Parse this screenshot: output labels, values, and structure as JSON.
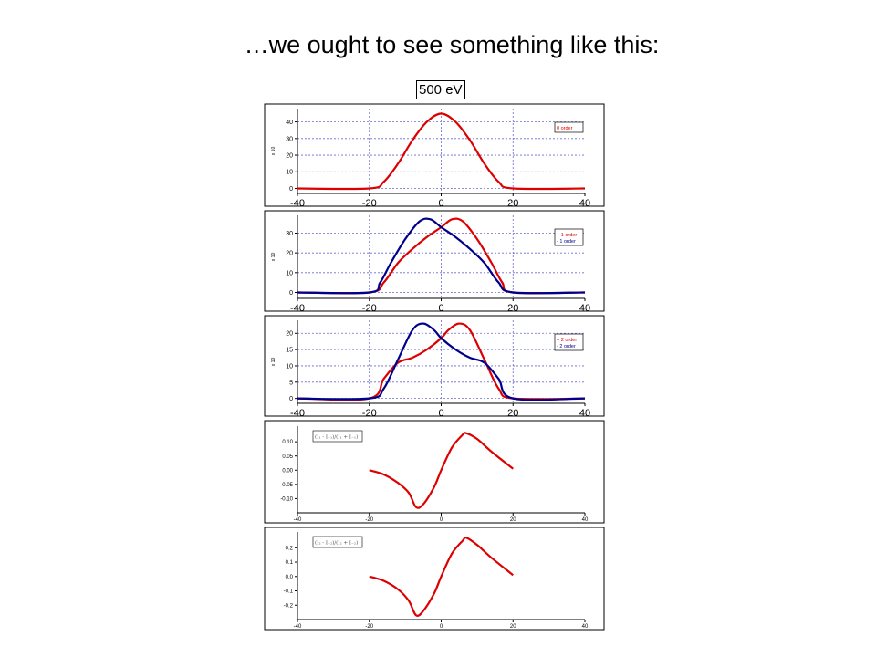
{
  "slide": {
    "title": "…we ought to see something like this:",
    "energy_label": "500 eV"
  },
  "colors": {
    "red": "#dd0000",
    "blue": "#00008b",
    "grid": "#6a6acd"
  },
  "chart_data": [
    {
      "type": "line",
      "xlim": [
        -40,
        40
      ],
      "ylim": [
        -3,
        48
      ],
      "xticks": [
        "-40",
        "-20",
        "0",
        "20",
        "40"
      ],
      "yticks": [
        "0",
        "10",
        "20",
        "30",
        "40"
      ],
      "ylabel": "x 10",
      "grid": true,
      "legend_position": "top-right",
      "series": [
        {
          "name": "0 order",
          "color": "red",
          "x": [
            -40,
            -20,
            -16,
            -12,
            -8,
            -4,
            0,
            4,
            8,
            12,
            16,
            20,
            40
          ],
          "y": [
            0,
            0,
            4,
            15,
            29,
            40,
            45,
            40,
            29,
            15,
            4,
            0,
            0
          ]
        }
      ]
    },
    {
      "type": "line",
      "xlim": [
        -40,
        40
      ],
      "ylim": [
        -3,
        39
      ],
      "xticks": [
        "-40",
        "-20",
        "0",
        "20",
        "40"
      ],
      "yticks": [
        "0",
        "10",
        "20",
        "30"
      ],
      "ylabel": "x 10",
      "grid": true,
      "legend_position": "top-right",
      "series": [
        {
          "name": "+ 1 order",
          "color": "red",
          "x": [
            -40,
            -20,
            -16,
            -12,
            -8,
            -4,
            0,
            3,
            6,
            10,
            14,
            17,
            20,
            40
          ],
          "y": [
            0,
            0,
            5,
            15,
            22,
            28,
            33,
            37,
            36,
            27,
            15,
            5,
            0,
            0
          ]
        },
        {
          "name": "- 1 order",
          "color": "blue",
          "x": [
            -40,
            -20,
            -17,
            -14,
            -10,
            -6,
            -3,
            0,
            4,
            8,
            12,
            16,
            20,
            40
          ],
          "y": [
            0,
            0,
            5,
            15,
            27,
            36,
            37,
            33,
            28,
            22,
            15,
            5,
            0,
            0
          ]
        }
      ]
    },
    {
      "type": "line",
      "xlim": [
        -40,
        40
      ],
      "ylim": [
        -1.5,
        24
      ],
      "xticks": [
        "-40",
        "-20",
        "0",
        "20",
        "40"
      ],
      "yticks": [
        "0",
        "5",
        "10",
        "15",
        "20"
      ],
      "ylabel": "x 10",
      "grid": true,
      "legend_position": "top-right",
      "series": [
        {
          "name": "+ 2 order",
          "color": "red",
          "x": [
            -40,
            -20,
            -16,
            -12,
            -8,
            -4,
            0,
            2,
            5,
            8,
            12,
            16,
            20,
            40
          ],
          "y": [
            0,
            0,
            6,
            11,
            12.5,
            15,
            18.5,
            21,
            23,
            21,
            12,
            3,
            0,
            0
          ]
        },
        {
          "name": "- 2 order",
          "color": "blue",
          "x": [
            -40,
            -20,
            -16,
            -12,
            -8,
            -5,
            -2,
            0,
            4,
            8,
            12,
            16,
            20,
            40
          ],
          "y": [
            0,
            0,
            3,
            12,
            21,
            23,
            21,
            18.5,
            15,
            12.5,
            11,
            6,
            0,
            0
          ]
        }
      ]
    },
    {
      "type": "line",
      "xlim": [
        -40,
        40
      ],
      "ylim": [
        -0.15,
        0.155
      ],
      "xticks": [
        "-40",
        "-20",
        "0",
        "20",
        "40"
      ],
      "yticks": [
        "0.10",
        "0.05",
        "0.00",
        "-0.05",
        "-0.10"
      ],
      "grid": false,
      "legend_position": "top-left",
      "legend_box": "(I₁ - I₋₁)/(I₁ + I₋₁)",
      "series": [
        {
          "color": "red",
          "x": [
            -20,
            -16,
            -12,
            -9,
            -7,
            -5,
            -2,
            0,
            3,
            6,
            7,
            10,
            14,
            20
          ],
          "y": [
            0,
            -0.015,
            -0.045,
            -0.08,
            -0.13,
            -0.12,
            -0.06,
            0,
            0.08,
            0.125,
            0.13,
            0.11,
            0.065,
            0.005
          ]
        }
      ]
    },
    {
      "type": "line",
      "xlim": [
        -40,
        40
      ],
      "ylim": [
        -0.3,
        0.31
      ],
      "xticks": [
        "-40",
        "-20",
        "0",
        "20",
        "40"
      ],
      "yticks": [
        "0.2",
        "0.1",
        "0.0",
        "-0.1",
        "-0.2"
      ],
      "grid": false,
      "legend_position": "top-left",
      "legend_box": "(I₂ - I₋₂)/(I₂ + I₋₂)",
      "series": [
        {
          "color": "red",
          "x": [
            -20,
            -16,
            -12,
            -9,
            -7,
            -5,
            -2,
            0,
            3,
            6,
            7,
            10,
            14,
            20
          ],
          "y": [
            0,
            -0.03,
            -0.09,
            -0.17,
            -0.27,
            -0.24,
            -0.12,
            0,
            0.16,
            0.25,
            0.27,
            0.22,
            0.13,
            0.01
          ]
        }
      ]
    }
  ]
}
